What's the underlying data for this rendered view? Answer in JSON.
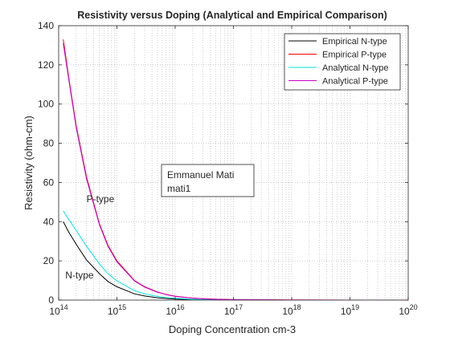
{
  "chart_data": {
    "type": "line",
    "title": "Resistivity versus Doping (Analytical and Empirical Comparison)",
    "xlabel": "Doping Concentration cm-3",
    "ylabel": "Resistivity (ohm-cm)",
    "xscale": "log",
    "xlim": [
      100000000000000.0,
      1e+20
    ],
    "ylim": [
      0,
      140
    ],
    "grid": "minor dotted on log x-axis",
    "legend_position": "top-right",
    "x_ticks": [
      {
        "value": 100000000000000.0,
        "base": "10",
        "exp": "14"
      },
      {
        "value": 1000000000000000.0,
        "base": "10",
        "exp": "15"
      },
      {
        "value": 1e+16,
        "base": "10",
        "exp": "16"
      },
      {
        "value": 1e+17,
        "base": "10",
        "exp": "17"
      },
      {
        "value": 1e+18,
        "base": "10",
        "exp": "18"
      },
      {
        "value": 1e+19,
        "base": "10",
        "exp": "19"
      },
      {
        "value": 1e+20,
        "base": "10",
        "exp": "20"
      }
    ],
    "y_ticks": [
      0,
      20,
      40,
      60,
      80,
      100,
      120,
      140
    ],
    "x": [
      120000000000000.0,
      150000000000000.0,
      200000000000000.0,
      300000000000000.0,
      500000000000000.0,
      700000000000000.0,
      1000000000000000.0,
      2000000000000000.0,
      3000000000000000.0,
      5000000000000000.0,
      7000000000000000.0,
      1e+16,
      2e+16,
      3e+16,
      5e+16,
      1e+17,
      1e+18,
      1e+19,
      1e+20
    ],
    "series": [
      {
        "name": "Empirical N-type",
        "color": "#000000",
        "values": [
          40,
          34.5,
          28.5,
          20.5,
          13.5,
          9.5,
          6.8,
          3.2,
          2.1,
          1.2,
          0.8,
          0.5,
          0.25,
          0.16,
          0.1,
          0.05,
          0.01,
          0.002,
          0.0004
        ]
      },
      {
        "name": "Empirical P-type",
        "color": "#ff0000",
        "values": [
          133,
          113,
          89,
          63,
          39,
          28,
          20,
          10,
          6.8,
          4.1,
          2.9,
          2.0,
          1.0,
          0.7,
          0.45,
          0.25,
          0.05,
          0.01,
          0.002
        ]
      },
      {
        "name": "Analytical N-type",
        "color": "#00e5e5",
        "values": [
          45.5,
          41,
          35.5,
          27.5,
          18.5,
          13.5,
          9.8,
          4.8,
          3.2,
          1.9,
          1.3,
          0.9,
          0.4,
          0.25,
          0.15,
          0.07,
          0.01,
          0.002,
          0.0004
        ]
      },
      {
        "name": "Analytical P-type",
        "color": "#cc00cc",
        "values": [
          131,
          112,
          88,
          62,
          38.5,
          27.5,
          19.5,
          9.8,
          6.6,
          4.0,
          2.8,
          1.9,
          0.95,
          0.65,
          0.4,
          0.2,
          0.04,
          0.008,
          0.0015
        ]
      }
    ],
    "annotations": [
      {
        "text": "P-type",
        "x": 300000000000000.0,
        "y": 50
      },
      {
        "text": "N-type",
        "x": 130000000000000.0,
        "y": 11
      }
    ],
    "textbox": {
      "lines": [
        "Emmanuel Mati",
        "mati1"
      ],
      "x": 3600000000000000.0,
      "y": 66
    }
  }
}
